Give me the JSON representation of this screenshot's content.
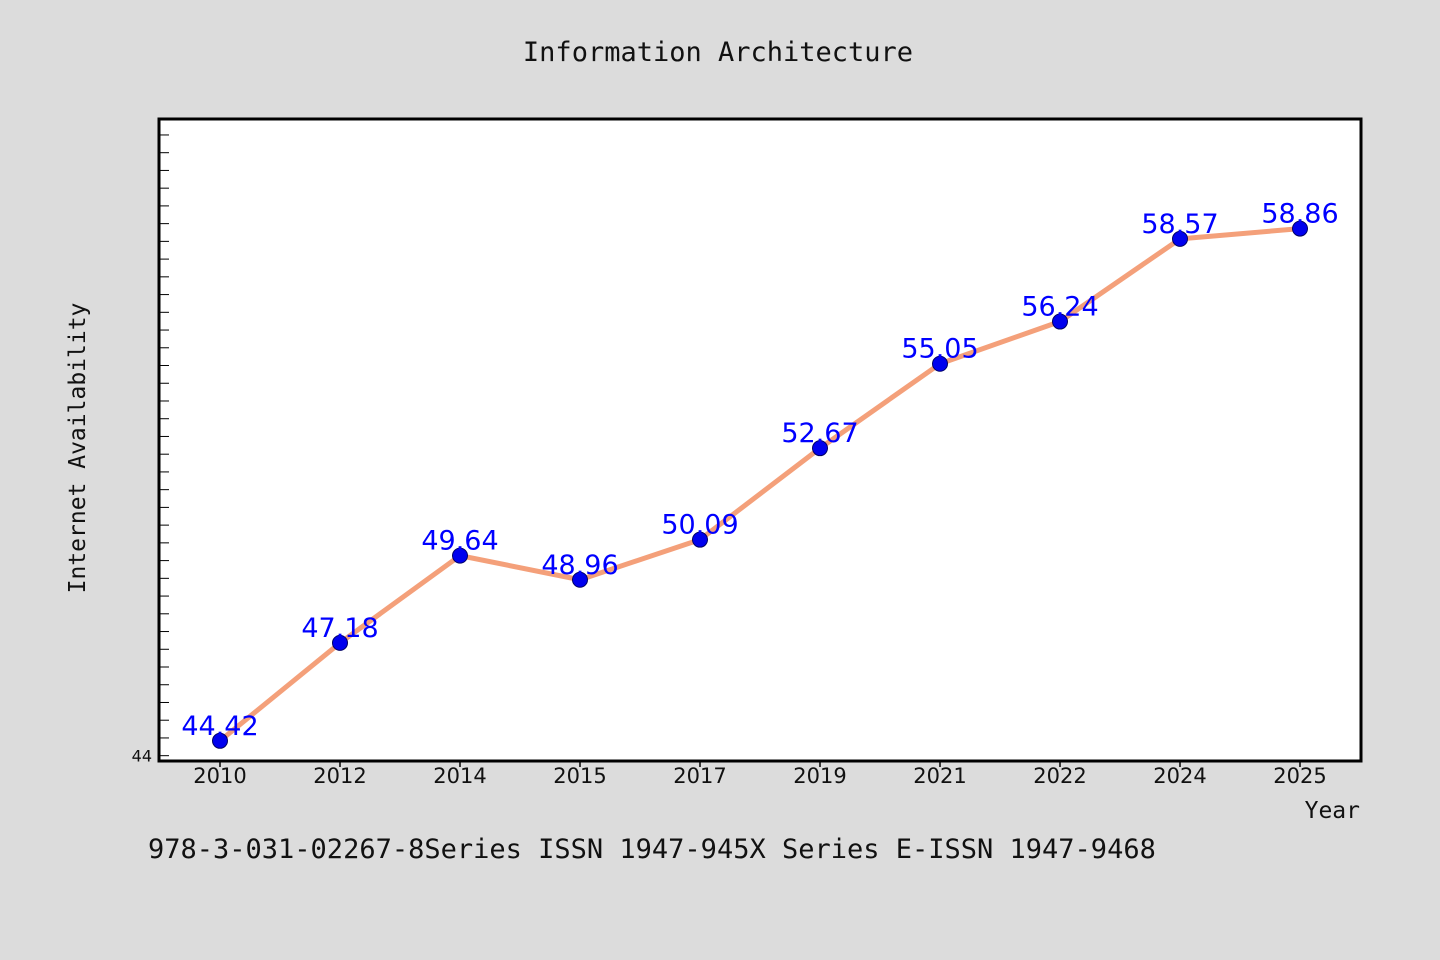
{
  "chart_data": {
    "type": "line",
    "title": "Information Architecture",
    "xlabel": "Year",
    "ylabel": "Internet Availability",
    "categories": [
      "2010",
      "2012",
      "2014",
      "2015",
      "2017",
      "2019",
      "2021",
      "2022",
      "2024",
      "2025"
    ],
    "series": [
      {
        "values": [
          44.42,
          47.18,
          49.64,
          48.96,
          50.09,
          52.67,
          55.05,
          56.24,
          58.57,
          58.86
        ]
      }
    ],
    "data_labels": [
      "44.42",
      "47.18",
      "49.64",
      "48.96",
      "50.09",
      "52.67",
      "55.05",
      "56.24",
      "58.57",
      "58.86"
    ],
    "ylim": [
      43.85,
      61.95
    ],
    "y_tick_labels": [
      "44"
    ],
    "grid": false,
    "legend": "none",
    "colors": {
      "line": "#f4a07a",
      "marker": "#0000ee",
      "data_label": "#0000ff",
      "background": "#dcdcdc",
      "plot_background": "#ffffff"
    }
  },
  "caption": "978-3-031-02267-8Series ISSN 1947-945X Series E-ISSN 1947-9468"
}
